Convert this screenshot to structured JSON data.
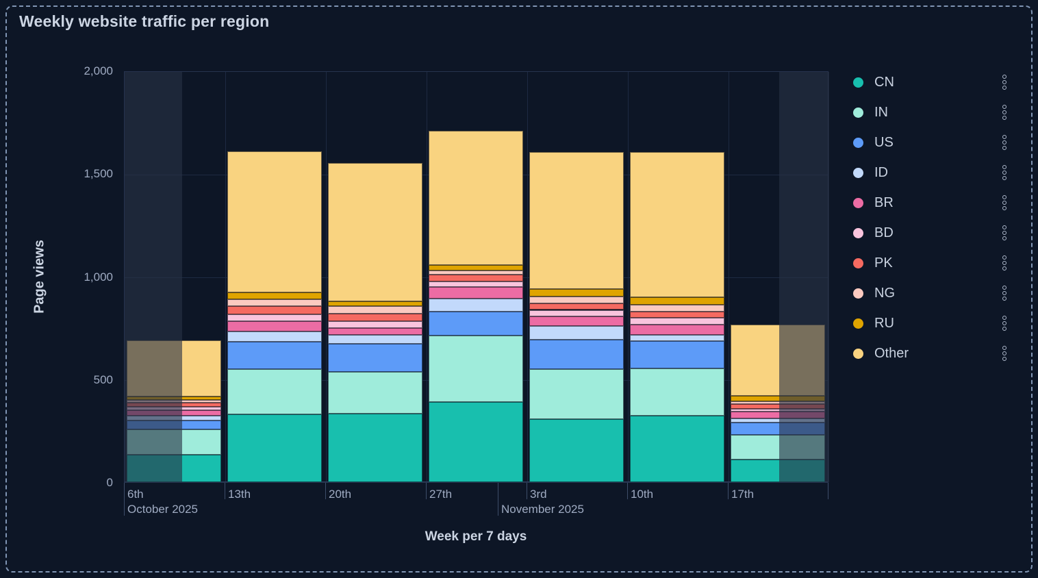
{
  "widget": {
    "title": "Weekly website traffic per region",
    "menu_icon": "kebab-vertical-icon"
  },
  "chart_data": {
    "type": "bar",
    "stacked": true,
    "title": "Weekly website traffic per region",
    "xlabel": "Week per 7 days",
    "ylabel": "Page views",
    "ylim": [
      0,
      2000
    ],
    "grid": true,
    "legend_position": "right",
    "y_ticks": [
      {
        "value": 0,
        "label": "0"
      },
      {
        "value": 500,
        "label": "500"
      },
      {
        "value": 1000,
        "label": "1,000"
      },
      {
        "value": 1500,
        "label": "1,500"
      },
      {
        "value": 2000,
        "label": "2,000"
      }
    ],
    "categories": [
      "Oct 6",
      "Oct 13",
      "Oct 20",
      "Oct 27",
      "Nov 3",
      "Nov 10",
      "Nov 17"
    ],
    "tick_labels": [
      "6th",
      "13th",
      "20th",
      "27th",
      "3rd",
      "10th",
      "17th"
    ],
    "months": [
      {
        "label": "October 2025",
        "week_index": 0,
        "day_offset": 0
      },
      {
        "label": "November 2025",
        "week_index": 3,
        "day_offset": 5
      }
    ],
    "days_total": 49,
    "shaded_periods": [
      {
        "name": "partial-week-start",
        "from_day": 0,
        "to_day": 4
      },
      {
        "name": "partial-week-end",
        "from_day": 45.5,
        "to_day": 49
      }
    ],
    "series": [
      {
        "name": "CN",
        "color": "#18bfae",
        "values": [
          133,
          330,
          333,
          390,
          305,
          322,
          111
        ]
      },
      {
        "name": "IN",
        "color": "#9fecdb",
        "values": [
          122,
          220,
          202,
          322,
          244,
          229,
          118
        ]
      },
      {
        "name": "US",
        "color": "#5d9bf8",
        "values": [
          46,
          133,
          138,
          117,
          142,
          135,
          59
        ]
      },
      {
        "name": "ID",
        "color": "#c2d9fb",
        "values": [
          22,
          48,
          41,
          63,
          68,
          31,
          23
        ]
      },
      {
        "name": "BR",
        "color": "#ec6ca4",
        "values": [
          28,
          50,
          35,
          55,
          48,
          50,
          32
        ]
      },
      {
        "name": "BD",
        "color": "#f9c4dd",
        "values": [
          14,
          34,
          33,
          28,
          30,
          33,
          12
        ]
      },
      {
        "name": "PK",
        "color": "#f56a61",
        "values": [
          21,
          41,
          38,
          33,
          33,
          28,
          24
        ]
      },
      {
        "name": "NG",
        "color": "#fbcac0",
        "values": [
          12,
          32,
          35,
          22,
          31,
          33,
          14
        ]
      },
      {
        "name": "RU",
        "color": "#dfa400",
        "values": [
          19,
          35,
          24,
          26,
          36,
          36,
          25
        ]
      },
      {
        "name": "Other",
        "color": "#f9d380",
        "values": [
          272,
          685,
          671,
          650,
          668,
          707,
          346
        ]
      }
    ],
    "totals": [
      689,
      1608,
      1550,
      1706,
      1605,
      1604,
      764
    ]
  },
  "legend": {
    "items": [
      {
        "label": "CN",
        "color": "#18bfae"
      },
      {
        "label": "IN",
        "color": "#9fecdb"
      },
      {
        "label": "US",
        "color": "#5d9bf8"
      },
      {
        "label": "ID",
        "color": "#c2d9fb"
      },
      {
        "label": "BR",
        "color": "#ec6ca4"
      },
      {
        "label": "BD",
        "color": "#f9c4dd"
      },
      {
        "label": "PK",
        "color": "#f56a61"
      },
      {
        "label": "NG",
        "color": "#fbcac0"
      },
      {
        "label": "RU",
        "color": "#dfa400"
      },
      {
        "label": "Other",
        "color": "#f9d380"
      }
    ]
  },
  "colors": {
    "page_bg": "#0d1626",
    "dashed_border": "#8095b4",
    "grid": "#1d2a42",
    "plot_border": "#26334e",
    "shade_overlay": "rgba(40,50,70,0.62)",
    "title_text": "#ccd5e3",
    "tick_text": "#9fabc2",
    "legend_text": "#c9d2e0"
  }
}
